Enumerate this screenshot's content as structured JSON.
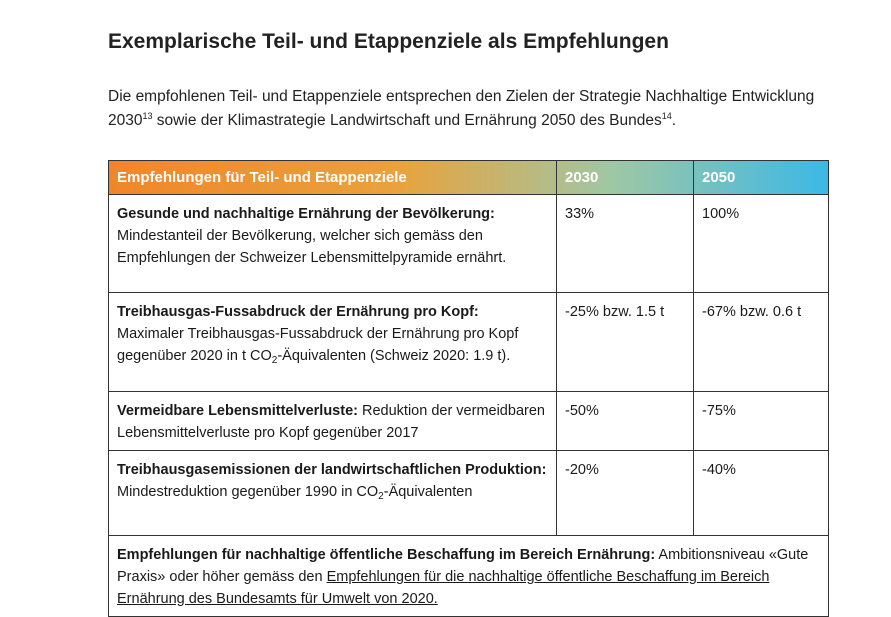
{
  "title": "Exemplarische Teil- und Etappenziele als Empfehlungen",
  "intro": {
    "text_1": "Die empfohlenen Teil- und Etappenziele entsprechen den Zielen der Strategie Nachhaltige Entwicklung 2030",
    "footnote_1": "13",
    "text_2": " sowie der Klimastrategie Landwirtschaft und Ernährung 2050 des Bundes",
    "footnote_2": "14",
    "text_3": "."
  },
  "table": {
    "headers": [
      "Empfehlungen für Teil- und Etappenziele",
      "2030",
      "2050"
    ],
    "rows": [
      {
        "bold": "Gesunde und nachhaltige Ernährung der Bevölkerung:",
        "text": "Mindestanteil der Bevölkerung, welcher sich gemäss den Empfehlungen der Schweizer Lebensmittelpyramide ernährt.",
        "v2030": "33%",
        "v2050": "100%"
      },
      {
        "bold": "Treibhausgas-Fussabdruck der Ernährung pro Kopf:",
        "text_a": "Maximaler Treibhausgas-Fussabdruck der Ernährung pro Kopf gegenüber 2020 in t CO",
        "sub": "2",
        "text_b": "-Äquivalenten (Schweiz 2020: 1.9 t).",
        "v2030": "-25% bzw. 1.5 t",
        "v2050": "-67% bzw. 0.6 t"
      },
      {
        "bold": "Vermeidbare Lebensmittelverluste:",
        "text": " Reduktion der vermeidbaren Lebensmittelverluste pro Kopf gegenüber 2017",
        "v2030": "-50%",
        "v2050": "-75%"
      },
      {
        "bold": "Treibhausgasemissionen der landwirtschaftlichen Produktion:",
        "text_a": " Mindestreduktion gegenüber 1990 in CO",
        "sub": "2",
        "text_b": "-Äquivalenten",
        "v2030": "-20%",
        "v2050": "-40%"
      }
    ],
    "footer": {
      "bold": "Empfehlungen für nachhaltige öffentliche Beschaffung im Bereich Ernährung:",
      "text": " Ambitionsniveau «Gute Praxis» oder höher gemäss den ",
      "link": "Empfehlungen für die nachhaltige öffentliche Beschaffung im Bereich Ernährung des Bundesamts für Umwelt von 2020."
    }
  },
  "colors": {
    "header_gradient_start": "#f0862a",
    "header_gradient_end": "#3cb8e6"
  }
}
